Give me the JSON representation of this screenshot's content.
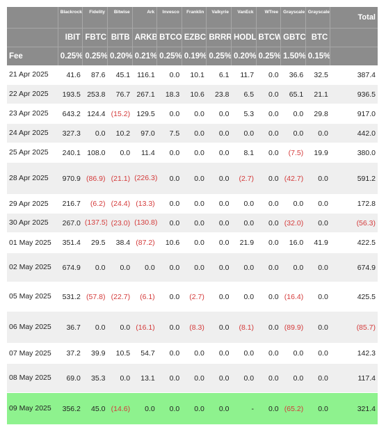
{
  "issuers": [
    "Blackrock",
    "Fidelity",
    "Bitwise",
    "Ark",
    "Invesco",
    "Franklin",
    "Valkyrie",
    "VanEck",
    "WTree",
    "Grayscale",
    "Grayscale"
  ],
  "total_label": "Total",
  "tickers": [
    "IBIT",
    "FBTC",
    "BITB",
    "ARKB",
    "BTCO",
    "EZBC",
    "BRRR",
    "HODL",
    "BTCW",
    "GBTC",
    "BTC"
  ],
  "fee_label": "Fee",
  "fees": [
    "0.25%",
    "0.25%",
    "0.20%",
    "0.21%",
    "0.25%",
    "0.19%",
    "0.25%",
    "0.20%",
    "0.25%",
    "1.50%",
    "0.15%"
  ],
  "rows": [
    {
      "date": "21 Apr 2025",
      "values": [
        "41.6",
        "87.6",
        "45.1",
        "116.1",
        "0.0",
        "10.1",
        "6.1",
        "11.7",
        "0.0",
        "36.6",
        "32.5"
      ],
      "total": "387.4"
    },
    {
      "date": "22 Apr 2025",
      "values": [
        "193.5",
        "253.8",
        "76.7",
        "267.1",
        "18.3",
        "10.6",
        "23.8",
        "6.5",
        "0.0",
        "65.1",
        "21.1"
      ],
      "total": "936.5"
    },
    {
      "date": "23 Apr 2025",
      "values": [
        "643.2",
        "124.4",
        "(15.2)",
        "129.5",
        "0.0",
        "0.0",
        "0.0",
        "5.3",
        "0.0",
        "0.0",
        "29.8"
      ],
      "total": "917.0"
    },
    {
      "date": "24 Apr 2025",
      "values": [
        "327.3",
        "0.0",
        "10.2",
        "97.0",
        "7.5",
        "0.0",
        "0.0",
        "0.0",
        "0.0",
        "0.0",
        "0.0"
      ],
      "total": "442.0"
    },
    {
      "date": "25 Apr 2025",
      "values": [
        "240.1",
        "108.0",
        "0.0",
        "11.4",
        "0.0",
        "0.0",
        "0.0",
        "8.1",
        "0.0",
        "(7.5)",
        "19.9"
      ],
      "total": "380.0"
    },
    {
      "date": "28 Apr 2025",
      "values": [
        "970.9",
        "(86.9)",
        "(21.1)",
        "(226.3)",
        "0.0",
        "0.0",
        "0.0",
        "(2.7)",
        "0.0",
        "(42.7)",
        "0.0"
      ],
      "total": "591.2"
    },
    {
      "date": "29 Apr 2025",
      "values": [
        "216.7",
        "(6.2)",
        "(24.4)",
        "(13.3)",
        "0.0",
        "0.0",
        "0.0",
        "0.0",
        "0.0",
        "0.0",
        "0.0"
      ],
      "total": "172.8"
    },
    {
      "date": "30 Apr 2025",
      "values": [
        "267.0",
        "(137.5)",
        "(23.0)",
        "(130.8)",
        "0.0",
        "0.0",
        "0.0",
        "0.0",
        "0.0",
        "(32.0)",
        "0.0"
      ],
      "total": "(56.3)"
    },
    {
      "date": "01 May 2025",
      "values": [
        "351.4",
        "29.5",
        "38.4",
        "(87.2)",
        "10.6",
        "0.0",
        "0.0",
        "21.9",
        "0.0",
        "16.0",
        "41.9"
      ],
      "total": "422.5"
    },
    {
      "date": "02 May 2025",
      "values": [
        "674.9",
        "0.0",
        "0.0",
        "0.0",
        "0.0",
        "0.0",
        "0.0",
        "0.0",
        "0.0",
        "0.0",
        "0.0"
      ],
      "total": "674.9"
    },
    {
      "date": "05 May 2025",
      "values": [
        "531.2",
        "(57.8)",
        "(22.7)",
        "(6.1)",
        "0.0",
        "(2.7)",
        "0.0",
        "0.0",
        "0.0",
        "(16.4)",
        "0.0"
      ],
      "total": "425.5"
    },
    {
      "date": "06 May 2025",
      "values": [
        "36.7",
        "0.0",
        "0.0",
        "(16.1)",
        "0.0",
        "(8.3)",
        "0.0",
        "(8.1)",
        "0.0",
        "(89.9)",
        "0.0"
      ],
      "total": "(85.7)"
    },
    {
      "date": "07 May 2025",
      "values": [
        "37.2",
        "39.9",
        "10.5",
        "54.7",
        "0.0",
        "0.0",
        "0.0",
        "0.0",
        "0.0",
        "0.0",
        "0.0"
      ],
      "total": "142.3"
    },
    {
      "date": "08 May 2025",
      "values": [
        "69.0",
        "35.3",
        "0.0",
        "13.1",
        "0.0",
        "0.0",
        "0.0",
        "0.0",
        "0.0",
        "0.0",
        "0.0"
      ],
      "total": "117.4"
    },
    {
      "date": "09 May 2025",
      "values": [
        "356.2",
        "45.0",
        "(14.6)",
        "0.0",
        "0.0",
        "0.0",
        "0.0",
        "-",
        "0.0",
        "(65.2)",
        "0.0"
      ],
      "total": "321.4"
    }
  ],
  "colors": {
    "header_bg": "#8c8c8c",
    "header_text": "#ffffff",
    "stripe": "#efefef",
    "highlight": "#8ef28e",
    "negative": "#d43a3a"
  }
}
